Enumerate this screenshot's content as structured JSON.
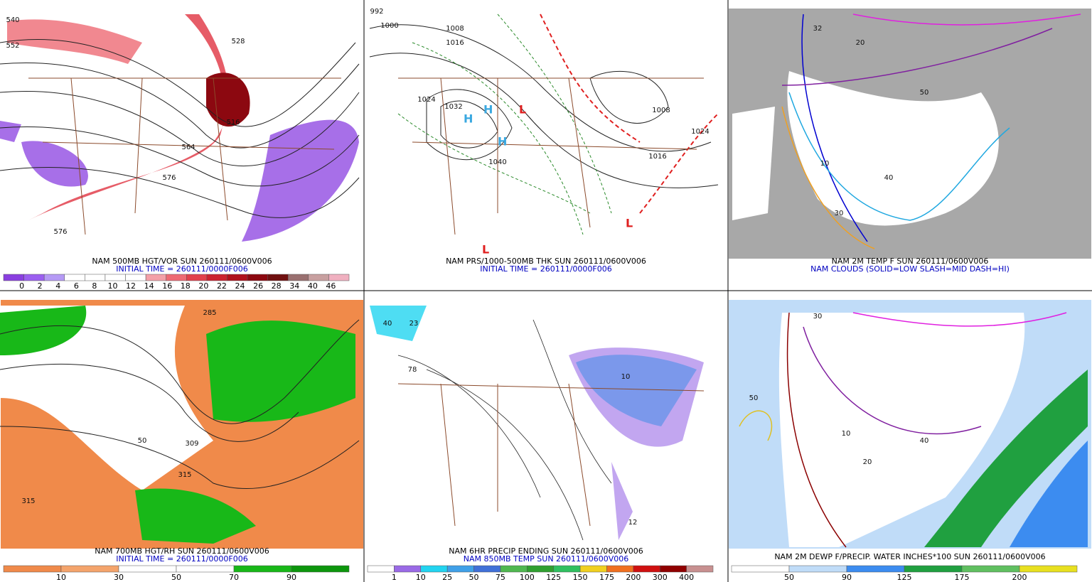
{
  "panels": [
    {
      "caption": [
        "NAM 500MB HGT/VOR SUN 260111/0600V006",
        "INITIAL TIME = 260111/0000F006"
      ],
      "colorbar": {
        "labels": [
          "0",
          "2",
          "4",
          "6",
          "8",
          "10",
          "12",
          "14",
          "16",
          "18",
          "20",
          "22",
          "24",
          "26",
          "28",
          "34",
          "40",
          "46"
        ],
        "colors": [
          "#8a3fe0",
          "#9b5ff0",
          "#b59af5",
          "#ffffff",
          "#ffffff",
          "#ffffff",
          "#ffffff",
          "#f4a0a8",
          "#ee6a74",
          "#e2404c",
          "#cc2230",
          "#b0101c",
          "#8c0810",
          "#701010",
          "#9a7070",
          "#c8a0a0",
          "#f0b0c0"
        ]
      },
      "map_labels": [
        "540",
        "552",
        "528",
        "516",
        "564",
        "576",
        "576"
      ]
    },
    {
      "caption": [
        "NAM PRS/1000-500MB THK SUN 260111/0600V006",
        "INITIAL TIME = 260111/0000F006"
      ],
      "map_labels": [
        "992",
        "1000",
        "1008",
        "1016",
        "1024",
        "1032",
        "1040",
        "1024",
        "1008",
        "1016"
      ]
    },
    {
      "caption": [
        "NAM 2M TEMP F SUN 260111/0600V006",
        "NAM CLOUDS (SOLID=LOW SLASH=MID DASH=HI)"
      ],
      "map_labels": [
        "32",
        "20",
        "10",
        "40",
        "50",
        "30"
      ]
    },
    {
      "caption": [
        "NAM 700MB HGT/RH SUN 260111/0600V006",
        "INITIAL TIME = 260111/0000F006"
      ],
      "colorbar": {
        "labels": [
          "10",
          "30",
          "50",
          "70",
          "90"
        ],
        "colors": [
          "#f08a4a",
          "#f4a46c",
          "#ffffff",
          "#ffffff",
          "#18b818",
          "#0c960c"
        ]
      },
      "map_labels": [
        "285",
        "50",
        "315",
        "309",
        "315"
      ]
    },
    {
      "caption": [
        "NAM 6HR PRECIP ENDING SUN 260111/0600V006",
        "NAM 850MB TEMP SUN 260111/0600V006"
      ],
      "colorbar": {
        "labels": [
          "1",
          "10",
          "25",
          "50",
          "75",
          "100",
          "125",
          "150",
          "175",
          "200",
          "300",
          "400"
        ],
        "colors": [
          "#ffffff",
          "#9a6ae6",
          "#22d4f0",
          "#40a0e8",
          "#4070d8",
          "#50b850",
          "#30a030",
          "#30c060",
          "#f0d020",
          "#f07020",
          "#d01010",
          "#900000",
          "#c89090"
        ]
      },
      "map_labels": [
        "40",
        "23",
        "78",
        "10",
        "12"
      ]
    },
    {
      "caption": [
        "NAM 2M DEWP F/PRECIP. WATER INCHES*100 SUN 260111/0600V006"
      ],
      "colorbar": {
        "labels": [
          "50",
          "90",
          "125",
          "175",
          "200"
        ],
        "colors": [
          "#ffffff",
          "#c0dcf8",
          "#3c8cf0",
          "#20a040",
          "#60c060",
          "#e8e020"
        ]
      },
      "map_labels": [
        "30",
        "50",
        "10",
        "20",
        "40"
      ]
    }
  ]
}
